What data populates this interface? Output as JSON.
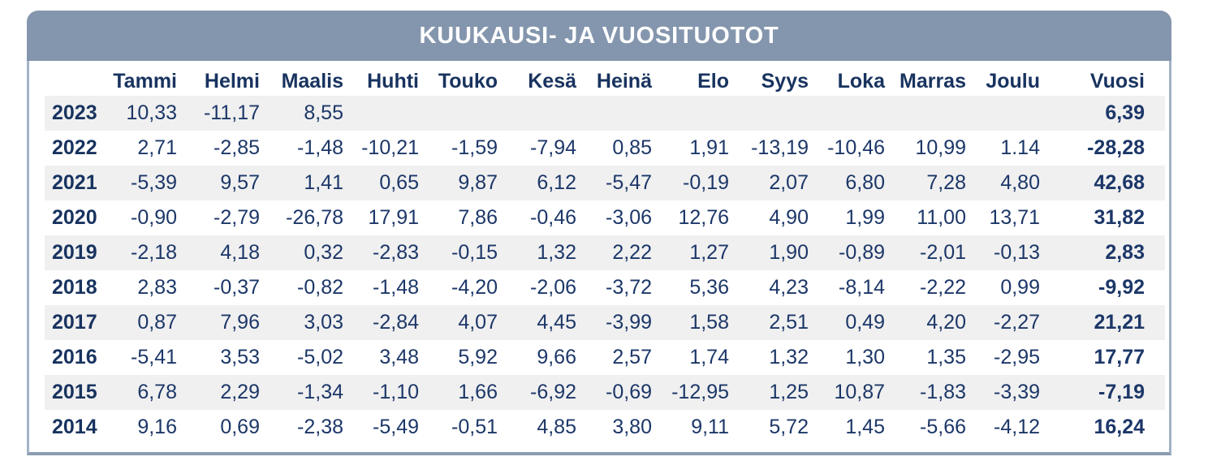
{
  "colors": {
    "header_bar": "#8496ad",
    "title_text": "#ffffff",
    "text_navy": "#1c3768",
    "stripe": "#f0f0f0",
    "border_side": "#a3b2c6",
    "border_bottom": "#8b9cb1"
  },
  "chart_data": {
    "type": "table",
    "title": "KUUKAUSI- JA VUOSITUOTOT",
    "month_headers": [
      "Tammi",
      "Helmi",
      "Maalis",
      "Huhti",
      "Touko",
      "Kesä",
      "Heinä",
      "Elo",
      "Syys",
      "Loka",
      "Marras",
      "Joulu"
    ],
    "total_header": "Vuosi",
    "rows": [
      {
        "year": "2023",
        "values": [
          "10,33",
          "-11,17",
          "8,55",
          "",
          "",
          "",
          "",
          "",
          "",
          "",
          "",
          ""
        ],
        "total": "6,39"
      },
      {
        "year": "2022",
        "values": [
          "2,71",
          "-2,85",
          "-1,48",
          "-10,21",
          "-1,59",
          "-7,94",
          "0,85",
          "1,91",
          "-13,19",
          "-10,46",
          "10,99",
          "1.14"
        ],
        "total": "-28,28"
      },
      {
        "year": "2021",
        "values": [
          "-5,39",
          "9,57",
          "1,41",
          "0,65",
          "9,87",
          "6,12",
          "-5,47",
          "-0,19",
          "2,07",
          "6,80",
          "7,28",
          "4,80"
        ],
        "total": "42,68"
      },
      {
        "year": "2020",
        "values": [
          "-0,90",
          "-2,79",
          "-26,78",
          "17,91",
          "7,86",
          "-0,46",
          "-3,06",
          "12,76",
          "4,90",
          "1,99",
          "11,00",
          "13,71"
        ],
        "total": "31,82"
      },
      {
        "year": "2019",
        "values": [
          "-2,18",
          "4,18",
          "0,32",
          "-2,83",
          "-0,15",
          "1,32",
          "2,22",
          "1,27",
          "1,90",
          "-0,89",
          "-2,01",
          "-0,13"
        ],
        "total": "2,83"
      },
      {
        "year": "2018",
        "values": [
          "2,83",
          "-0,37",
          "-0,82",
          "-1,48",
          "-4,20",
          "-2,06",
          "-3,72",
          "5,36",
          "4,23",
          "-8,14",
          "-2,22",
          "0,99"
        ],
        "total": "-9,92"
      },
      {
        "year": "2017",
        "values": [
          "0,87",
          "7,96",
          "3,03",
          "-2,84",
          "4,07",
          "4,45",
          "-3,99",
          "1,58",
          "2,51",
          "0,49",
          "4,20",
          "-2,27"
        ],
        "total": "21,21"
      },
      {
        "year": "2016",
        "values": [
          "-5,41",
          "3,53",
          "-5,02",
          "3,48",
          "5,92",
          "9,66",
          "2,57",
          "1,74",
          "1,32",
          "1,30",
          "1,35",
          "-2,95"
        ],
        "total": "17,77"
      },
      {
        "year": "2015",
        "values": [
          "6,78",
          "2,29",
          "-1,34",
          "-1,10",
          "1,66",
          "-6,92",
          "-0,69",
          "-12,95",
          "1,25",
          "10,87",
          "-1,83",
          "-3,39"
        ],
        "total": "-7,19"
      },
      {
        "year": "2014",
        "values": [
          "9,16",
          "0,69",
          "-2,38",
          "-5,49",
          "-0,51",
          "4,85",
          "3,80",
          "9,11",
          "5,72",
          "1,45",
          "-5,66",
          "-4,12"
        ],
        "total": "16,24"
      }
    ]
  }
}
